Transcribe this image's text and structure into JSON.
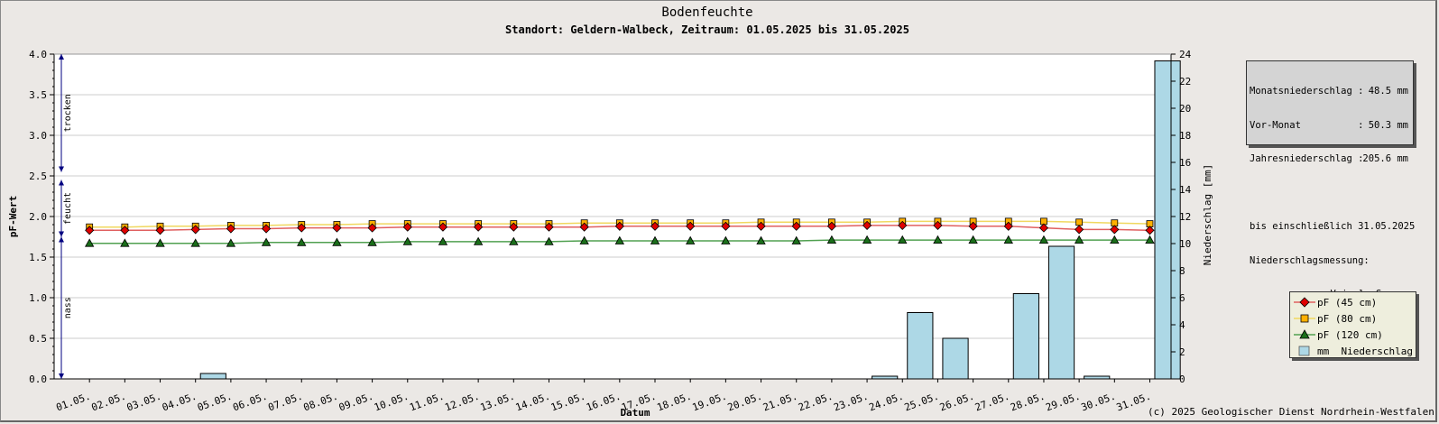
{
  "header": {
    "title": "Bodenfeuchte",
    "subtitle": "Standort: Geldern-Walbeck, Zeitraum: 01.05.2025 bis 31.05.2025"
  },
  "info_box": {
    "rows": [
      {
        "label": "Monatsniederschlag :",
        "value": "48.5 mm"
      },
      {
        "label": "Vor-Monat          :",
        "value": "50.3 mm"
      },
      {
        "label": "Jahresniederschlag :",
        "value": "205.6 mm"
      }
    ],
    "line4": "bis einschließlich 31.05.2025",
    "line5": "Niederschlagsmessung:",
    "line6": "Vaisala-Sensor"
  },
  "footer": "(c) 2025 Geologischer Dienst Nordrhein-Westfalen",
  "colors": {
    "pf45_line": "#e06060",
    "pf45_marker": "#e00000",
    "pf80_line": "#f0d860",
    "pf80_marker": "#ffb000",
    "pf120_line": "#50a050",
    "pf120_marker": "#1a6e1a",
    "bar_fill": "#add8e6",
    "zone_marker": "#000080",
    "grid": "#cccccc"
  },
  "chart_data": {
    "type": "bar+line",
    "xlabel": "Datum",
    "ylabel": "pF-Wert",
    "y2label": "Niederschlag [mm]",
    "ylim": [
      0,
      4
    ],
    "y_ticks": [
      "0.0",
      "0.5",
      "1.0",
      "1.5",
      "2.0",
      "2.5",
      "3.0",
      "3.5",
      "4.0"
    ],
    "y2lim": [
      0,
      24
    ],
    "y2_ticks": [
      "0",
      "2",
      "4",
      "6",
      "8",
      "10",
      "12",
      "14",
      "16",
      "18",
      "20",
      "22",
      "24"
    ],
    "grid": true,
    "categories": [
      "01.05.",
      "02.05.",
      "03.05.",
      "04.05.",
      "05.05.",
      "06.05.",
      "07.05.",
      "08.05.",
      "09.05.",
      "10.05.",
      "11.05.",
      "12.05.",
      "13.05.",
      "14.05.",
      "15.05.",
      "16.05.",
      "17.05.",
      "18.05.",
      "19.05.",
      "20.05.",
      "21.05.",
      "22.05.",
      "23.05.",
      "24.05.",
      "25.05.",
      "26.05.",
      "27.05.",
      "28.05.",
      "29.05.",
      "30.05.",
      "31.05."
    ],
    "zones": [
      {
        "label": "trocken",
        "from": 2.55,
        "to": 4.0
      },
      {
        "label": "feucht",
        "from": 1.75,
        "to": 2.45
      },
      {
        "label": "nass",
        "from": 0.0,
        "to": 1.75
      }
    ],
    "series": [
      {
        "name": "pF (45 cm)",
        "axis": "left",
        "values": [
          1.83,
          1.83,
          1.83,
          1.84,
          1.85,
          1.85,
          1.86,
          1.86,
          1.86,
          1.87,
          1.87,
          1.87,
          1.87,
          1.87,
          1.87,
          1.88,
          1.88,
          1.88,
          1.88,
          1.88,
          1.88,
          1.88,
          1.89,
          1.89,
          1.89,
          1.88,
          1.88,
          1.86,
          1.84,
          1.84,
          1.83
        ]
      },
      {
        "name": "pF (80 cm)",
        "axis": "left",
        "values": [
          1.87,
          1.87,
          1.88,
          1.88,
          1.89,
          1.89,
          1.9,
          1.9,
          1.91,
          1.91,
          1.91,
          1.91,
          1.91,
          1.91,
          1.92,
          1.92,
          1.92,
          1.92,
          1.92,
          1.93,
          1.93,
          1.93,
          1.93,
          1.94,
          1.94,
          1.94,
          1.94,
          1.94,
          1.93,
          1.92,
          1.91
        ]
      },
      {
        "name": "pF (120 cm)",
        "axis": "left",
        "values": [
          1.67,
          1.67,
          1.67,
          1.67,
          1.67,
          1.68,
          1.68,
          1.68,
          1.68,
          1.69,
          1.69,
          1.69,
          1.69,
          1.69,
          1.7,
          1.7,
          1.7,
          1.7,
          1.7,
          1.7,
          1.7,
          1.71,
          1.71,
          1.71,
          1.71,
          1.71,
          1.71,
          1.71,
          1.71,
          1.71,
          1.71
        ]
      },
      {
        "name": "mm  Niederschlag",
        "axis": "right",
        "type": "bar",
        "values": [
          0,
          0,
          0,
          0.4,
          0,
          0,
          0,
          0,
          0,
          0,
          0,
          0,
          0,
          0,
          0,
          0,
          0,
          0,
          0,
          0,
          0,
          0,
          0.2,
          4.9,
          3.0,
          0,
          6.3,
          9.8,
          0.2,
          0,
          23.5
        ]
      }
    ]
  }
}
